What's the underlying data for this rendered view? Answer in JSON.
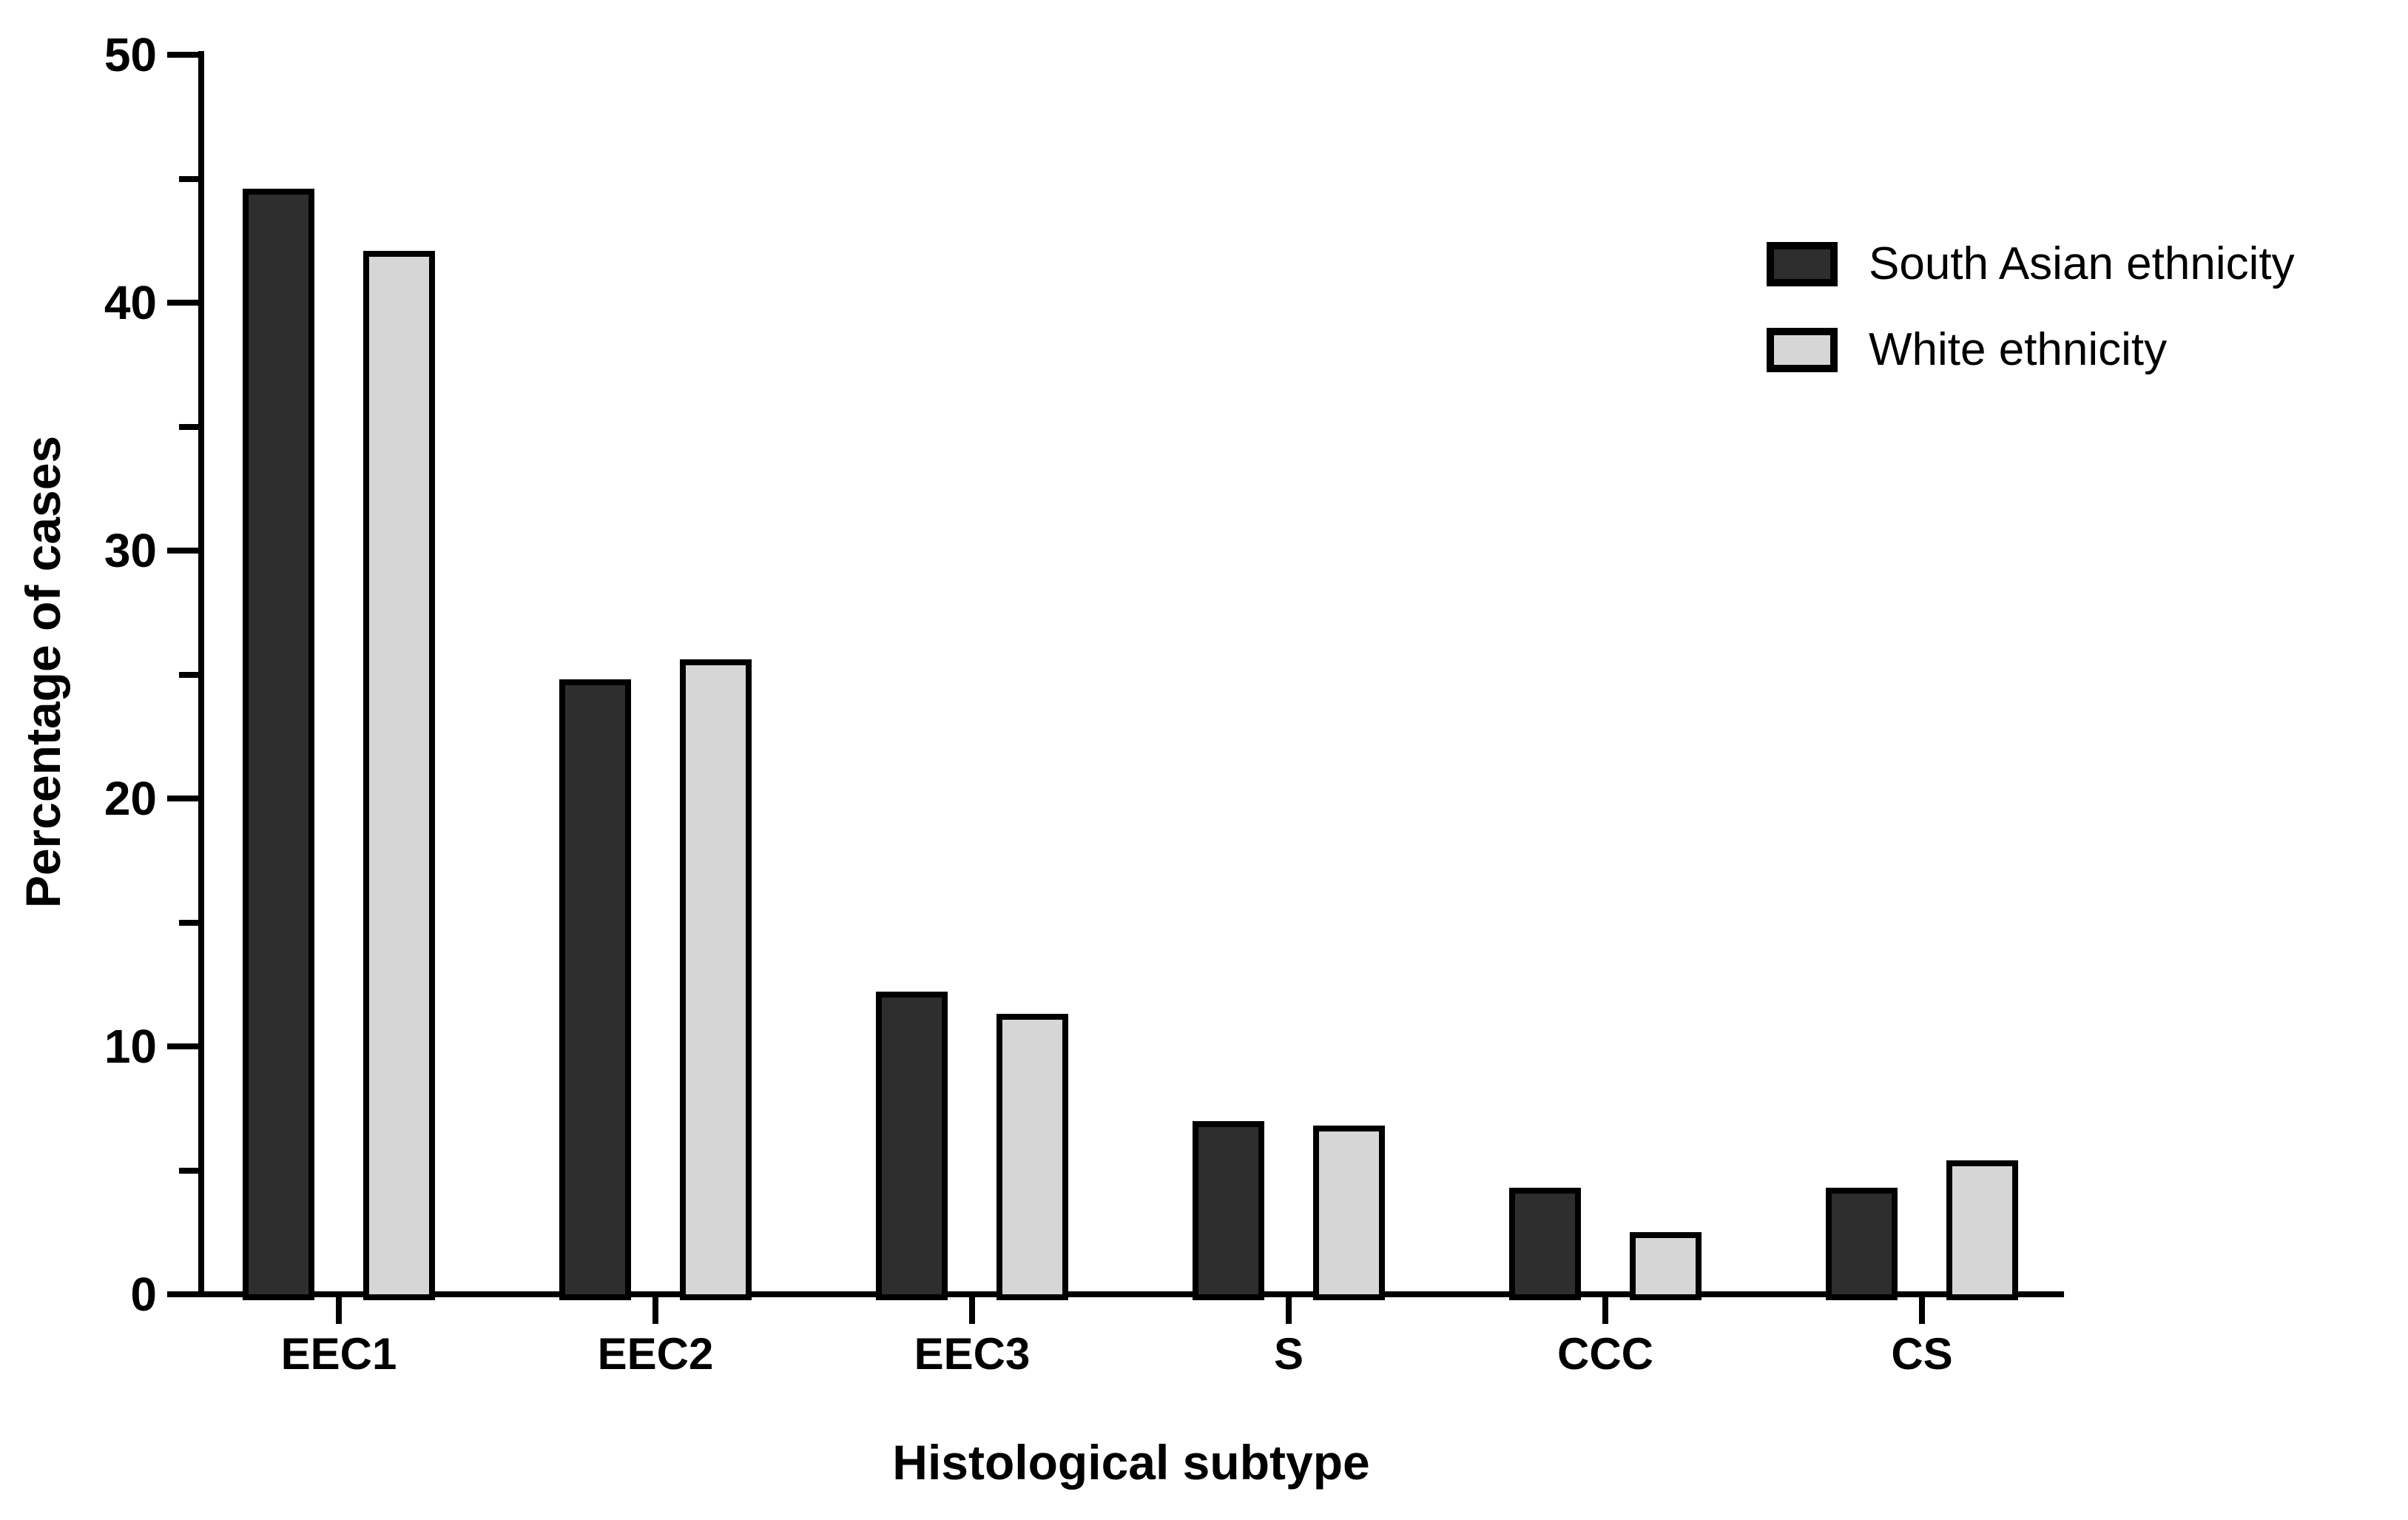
{
  "chart_data": {
    "type": "bar",
    "title": "",
    "categories": [
      "EEC1",
      "EEC2",
      "EEC3",
      "S",
      "CCC",
      "CS"
    ],
    "series": [
      {
        "name": "South Asian ethnicity",
        "color": "#2e2e2e",
        "values": [
          44.6,
          24.8,
          12.2,
          7.0,
          4.3,
          4.3
        ]
      },
      {
        "name": "White ethnicity",
        "color": "#d6d6d6",
        "values": [
          42.1,
          25.6,
          11.3,
          6.8,
          2.5,
          5.4
        ]
      }
    ],
    "xlabel": "Histological subtype",
    "ylabel": "Percentage of cases",
    "ylim": [
      0,
      50
    ],
    "y_major_ticks": [
      0,
      10,
      20,
      30,
      40,
      50
    ],
    "y_minor_ticks": [
      5,
      15,
      25,
      35,
      45
    ],
    "grid": false,
    "legend_position": "top-right",
    "bar_border_color": "#000000",
    "axis_color": "#000000",
    "background_color": "#ffffff"
  }
}
